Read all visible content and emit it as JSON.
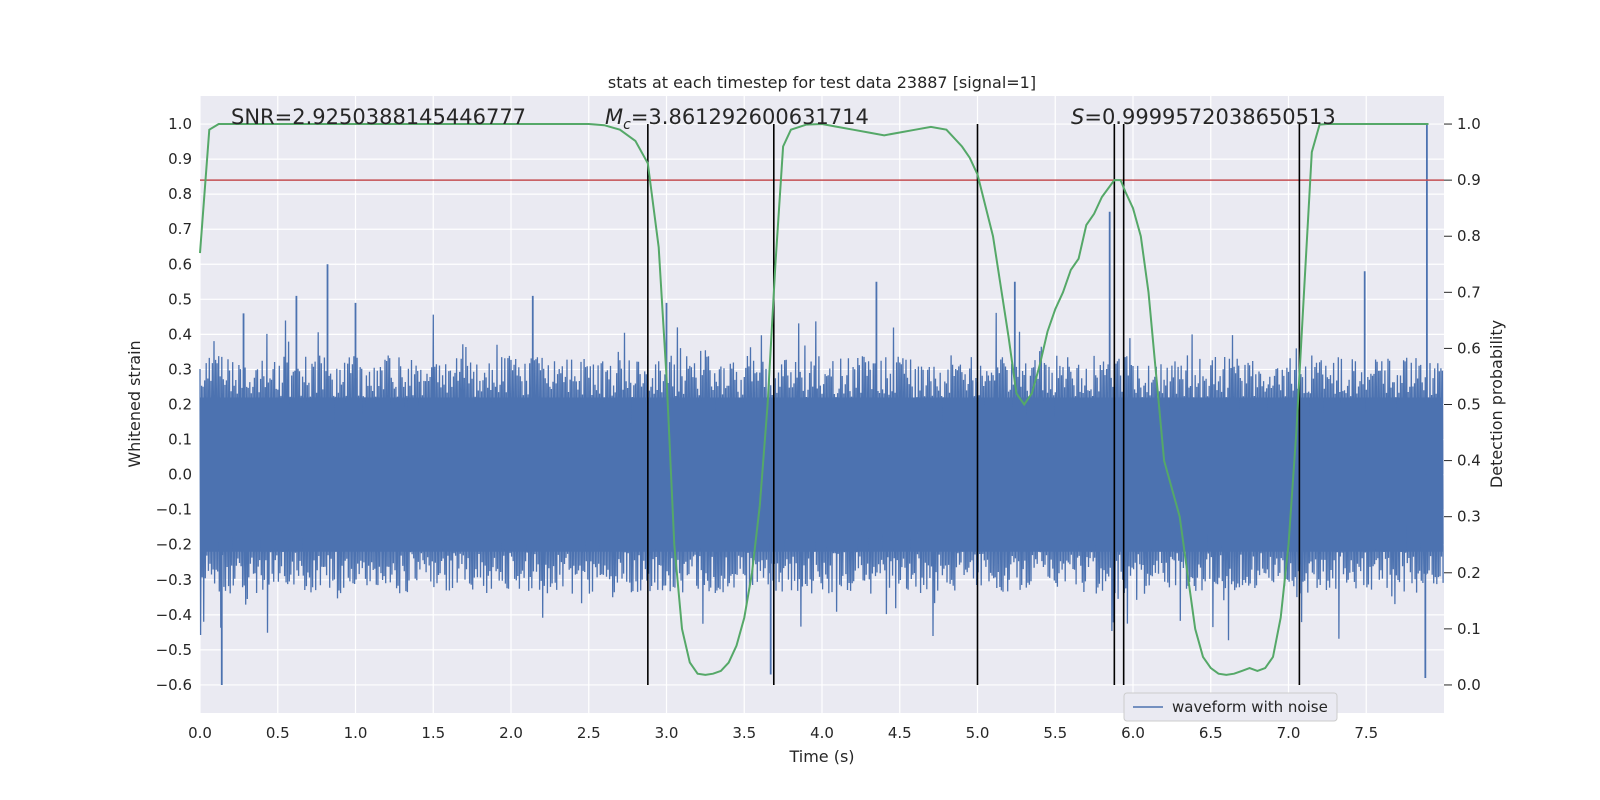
{
  "chart_data": {
    "type": "line",
    "title": "stats at each timestep for test data 23887 [signal=1]",
    "xlabel": "Time (s)",
    "ylabel": "Whitened strain",
    "y2label": "Detection probability",
    "xlim": [
      0.0,
      8.0
    ],
    "ylim": [
      -0.68,
      1.08
    ],
    "y2lim": [
      -0.05,
      1.05
    ],
    "xticks": [
      0.0,
      0.5,
      1.0,
      1.5,
      2.0,
      2.5,
      3.0,
      3.5,
      4.0,
      4.5,
      5.0,
      5.5,
      6.0,
      6.5,
      7.0,
      7.5
    ],
    "xtick_labels": [
      "0.0",
      "0.5",
      "1.0",
      "1.5",
      "2.0",
      "2.5",
      "3.0",
      "3.5",
      "4.0",
      "4.5",
      "5.0",
      "5.5",
      "6.0",
      "6.5",
      "7.0",
      "7.5"
    ],
    "yticks": [
      -0.6,
      -0.5,
      -0.4,
      -0.3,
      -0.2,
      -0.1,
      0.0,
      0.1,
      0.2,
      0.3,
      0.4,
      0.5,
      0.6,
      0.7,
      0.8,
      0.9,
      1.0
    ],
    "ytick_labels": [
      "−0.6",
      "−0.5",
      "−0.4",
      "−0.3",
      "−0.2",
      "−0.1",
      "0.0",
      "0.1",
      "0.2",
      "0.3",
      "0.4",
      "0.5",
      "0.6",
      "0.7",
      "0.8",
      "0.9",
      "1.0"
    ],
    "y2ticks": [
      0.0,
      0.1,
      0.2,
      0.3,
      0.4,
      0.5,
      0.6,
      0.7,
      0.8,
      0.9,
      1.0
    ],
    "y2tick_labels": [
      "0.0",
      "0.1",
      "0.2",
      "0.3",
      "0.4",
      "0.5",
      "0.6",
      "0.7",
      "0.8",
      "0.9",
      "1.0"
    ],
    "grid": true,
    "annotations": {
      "snr_prefix": "SNR",
      "snr_value": "=2.9250388145446777",
      "mc_symbol": "M",
      "mc_subscript": "c",
      "mc_value": "=3.861292600631714",
      "s_symbol": "S",
      "s_value": "=0.9999572038650513"
    },
    "legend": {
      "label": "waveform with noise",
      "position": "lower-right"
    },
    "threshold_line": {
      "y2_value": 0.9,
      "color": "#c44e52"
    },
    "vertical_lines": {
      "x": [
        2.88,
        3.69,
        5.0,
        5.88,
        5.94,
        7.07
      ],
      "color": "#000000"
    },
    "waveform": {
      "name": "waveform with noise",
      "color": "#4c72b0",
      "core_amplitude": 0.22,
      "sample_count": 800,
      "spikes": [
        {
          "x": 0.14,
          "y": -0.6
        },
        {
          "x": 0.28,
          "y": 0.46
        },
        {
          "x": 0.82,
          "y": 0.6
        },
        {
          "x": 0.62,
          "y": 0.51
        },
        {
          "x": 1.0,
          "y": 0.49
        },
        {
          "x": 2.14,
          "y": 0.51
        },
        {
          "x": 3.0,
          "y": 0.49
        },
        {
          "x": 3.67,
          "y": -0.57
        },
        {
          "x": 4.35,
          "y": 0.55
        },
        {
          "x": 5.24,
          "y": 0.55
        },
        {
          "x": 5.85,
          "y": 0.75
        },
        {
          "x": 7.49,
          "y": 0.58
        },
        {
          "x": 7.89,
          "y": 1.0
        },
        {
          "x": 7.88,
          "y": -0.58
        }
      ]
    },
    "probability_series": {
      "name": "detection probability",
      "color": "#55a868",
      "x": [
        0.0,
        0.06,
        0.12,
        0.5,
        1.0,
        2.0,
        2.5,
        2.6,
        2.7,
        2.8,
        2.88,
        2.95,
        3.0,
        3.05,
        3.1,
        3.15,
        3.2,
        3.25,
        3.3,
        3.35,
        3.4,
        3.45,
        3.5,
        3.55,
        3.6,
        3.65,
        3.7,
        3.75,
        3.8,
        3.9,
        4.0,
        4.1,
        4.2,
        4.3,
        4.4,
        4.5,
        4.6,
        4.7,
        4.8,
        4.9,
        4.95,
        5.0,
        5.1,
        5.2,
        5.25,
        5.3,
        5.35,
        5.4,
        5.45,
        5.5,
        5.55,
        5.6,
        5.65,
        5.7,
        5.75,
        5.8,
        5.88,
        5.92,
        5.95,
        6.0,
        6.05,
        6.1,
        6.15,
        6.2,
        6.25,
        6.3,
        6.35,
        6.4,
        6.45,
        6.5,
        6.55,
        6.6,
        6.65,
        6.7,
        6.75,
        6.8,
        6.85,
        6.9,
        6.95,
        7.0,
        7.05,
        7.1,
        7.15,
        7.2,
        7.25,
        7.3,
        7.5,
        7.7,
        7.9
      ],
      "y": [
        0.77,
        0.99,
        1.0,
        1.0,
        1.0,
        1.0,
        1.0,
        0.998,
        0.99,
        0.97,
        0.93,
        0.78,
        0.55,
        0.25,
        0.1,
        0.04,
        0.02,
        0.018,
        0.02,
        0.025,
        0.04,
        0.07,
        0.12,
        0.2,
        0.32,
        0.5,
        0.75,
        0.96,
        0.99,
        0.999,
        1.0,
        0.995,
        0.99,
        0.985,
        0.98,
        0.985,
        0.99,
        0.995,
        0.99,
        0.96,
        0.94,
        0.91,
        0.8,
        0.62,
        0.52,
        0.5,
        0.52,
        0.57,
        0.63,
        0.67,
        0.7,
        0.74,
        0.76,
        0.82,
        0.84,
        0.87,
        0.9,
        0.9,
        0.88,
        0.85,
        0.8,
        0.7,
        0.55,
        0.4,
        0.35,
        0.3,
        0.2,
        0.1,
        0.05,
        0.03,
        0.02,
        0.018,
        0.02,
        0.025,
        0.03,
        0.025,
        0.03,
        0.05,
        0.12,
        0.25,
        0.45,
        0.7,
        0.95,
        0.999,
        1.0,
        1.0,
        1.0,
        1.0,
        1.0
      ]
    }
  }
}
